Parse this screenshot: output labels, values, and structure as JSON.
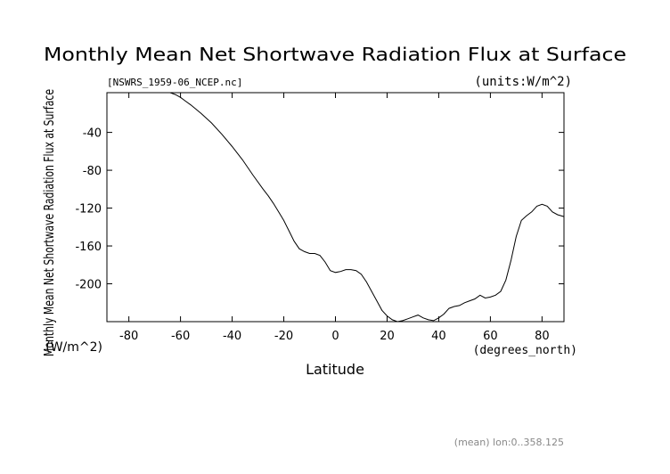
{
  "chart_data": {
    "type": "line",
    "title": "Monthly Mean Net Shortwave Radiation Flux at Surface",
    "subtitle_left": "[NSWRS_1959-06_NCEP.nc]",
    "subtitle_right": "(units:W/m^2)",
    "xlabel": "Latitude",
    "xunits": "(degrees_north)",
    "ylabel": "Monthly Mean Net Shortwave Radiation Flux at Surface",
    "yunits": "(W/m^2)",
    "footer": "(mean) lon:0..358.125",
    "xlim": [
      -88.5,
      88.5
    ],
    "ylim": [
      -240,
      2
    ],
    "xticks": [
      -80,
      -60,
      -40,
      -20,
      0,
      20,
      40,
      60,
      80
    ],
    "yticks": [
      -40,
      -80,
      -120,
      -160,
      -200
    ],
    "grid": false,
    "series": [
      {
        "x": [
          -88.5,
          -84,
          -80,
          -76,
          -72,
          -68,
          -64,
          -62,
          -60,
          -58,
          -56,
          -52,
          -48,
          -44,
          -40,
          -36,
          -32,
          -28,
          -26,
          -24,
          -22,
          -20,
          -18,
          -16,
          -14,
          -12,
          -10,
          -8,
          -6,
          -4,
          -2,
          0,
          2,
          4,
          6,
          8,
          10,
          12,
          14,
          16,
          18,
          20,
          22,
          24,
          26,
          28,
          30,
          32,
          34,
          36,
          38,
          40,
          42,
          44,
          46,
          48,
          50,
          52,
          54,
          56,
          58,
          60,
          62,
          64,
          66,
          68,
          70,
          72,
          74,
          76,
          78,
          80,
          82,
          84,
          86,
          88.5
        ],
        "y": [
          2,
          2,
          2,
          2,
          2,
          2,
          2,
          0,
          -3,
          -7,
          -11,
          -20,
          -30,
          -42,
          -55,
          -69,
          -85,
          -100,
          -107,
          -115,
          -124,
          -133,
          -144,
          -155,
          -163,
          -166,
          -168,
          -168,
          -170,
          -177,
          -186,
          -188,
          -187,
          -185,
          -185,
          -186,
          -190,
          -198,
          -208,
          -218,
          -228,
          -234,
          -238,
          -240,
          -239,
          -237,
          -235,
          -233,
          -236,
          -238,
          -239,
          -236,
          -232,
          -226,
          -224,
          -223,
          -220,
          -218,
          -216,
          -212,
          -215,
          -214,
          -212,
          -208,
          -196,
          -175,
          -150,
          -133,
          -128,
          -124,
          -118,
          -116,
          -118,
          -124,
          -127,
          -129
        ]
      }
    ]
  }
}
